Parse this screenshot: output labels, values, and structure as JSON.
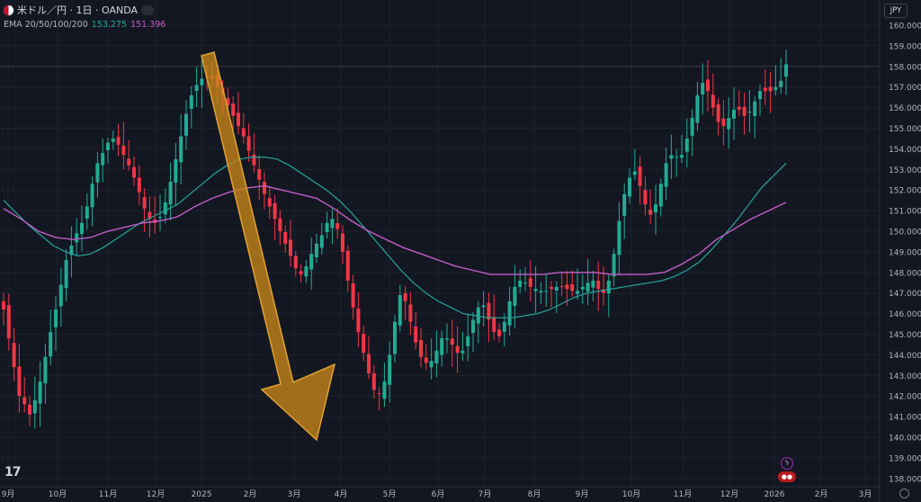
{
  "header": {
    "symbol": "米ドル／円 · 1日 · OANDA"
  },
  "ema": {
    "label": "EMA 20/50/100/200",
    "value1": "153.275",
    "value2": "151.396"
  },
  "currency_button": "JPY",
  "logo": "17",
  "chart_data": {
    "type": "candlestick",
    "price_axis": [
      "160.000",
      "159.000",
      "158.000",
      "157.000",
      "156.000",
      "155.000",
      "154.000",
      "153.000",
      "152.000",
      "151.000",
      "150.000",
      "149.000",
      "148.000",
      "147.000",
      "146.000",
      "145.000",
      "144.000",
      "143.000",
      "142.000",
      "141.000",
      "140.000",
      "139.000",
      "138.000"
    ],
    "ylim": [
      137.6,
      160.6
    ],
    "time_axis": [
      "9月",
      "10月",
      "11月",
      "12月",
      "2025",
      "2月",
      "3月",
      "4月",
      "5月",
      "6月",
      "7月",
      "8月",
      "9月",
      "10月",
      "11月",
      "12月",
      "2026",
      "2月",
      "3月"
    ],
    "price_line": 158.0,
    "colors": {
      "up": "#22ab94",
      "down": "#f23645",
      "ema_short": "#26a69a",
      "ema_long": "#c35dc7",
      "arrow": "#c8871a",
      "background": "#131722"
    },
    "series_close": [
      146.2,
      144.8,
      143.4,
      142.0,
      141.6,
      141.1,
      141.8,
      142.7,
      143.9,
      145.1,
      146.2,
      147.4,
      148.6,
      149.3,
      149.9,
      150.4,
      151.2,
      152.3,
      153.3,
      153.8,
      154.3,
      154.5,
      154.2,
      153.7,
      153.2,
      152.6,
      151.9,
      151.1,
      150.6,
      150.4,
      150.7,
      151.4,
      152.4,
      153.5,
      154.6,
      155.7,
      156.6,
      157.1,
      157.4,
      157.5,
      157.4,
      157.0,
      156.6,
      156.1,
      155.6,
      155.1,
      154.6,
      153.9,
      153.2,
      152.5,
      151.8,
      151.2,
      150.6,
      150.0,
      149.4,
      148.8,
      148.2,
      147.9,
      148.3,
      148.9,
      149.4,
      149.8,
      150.4,
      150.6,
      150.1,
      149.0,
      147.6,
      146.3,
      145.1,
      144.1,
      143.1,
      142.3,
      142.1,
      142.7,
      144.0,
      145.6,
      146.9,
      146.6,
      145.6,
      144.6,
      143.9,
      143.6,
      143.7,
      144.2,
      144.8,
      144.8,
      144.5,
      144.1,
      144.2,
      144.9,
      145.7,
      146.3,
      146.4,
      145.7,
      145.1,
      144.9,
      145.6,
      146.6,
      147.3,
      147.6,
      147.5,
      147.3,
      147.2,
      147.1,
      147.1,
      147.2,
      147.3,
      147.3,
      147.2,
      147.1,
      147.1,
      147.3,
      147.5,
      147.6,
      147.2,
      147.0,
      147.6,
      148.9,
      150.5,
      151.8,
      152.6,
      152.9,
      152.2,
      151.3,
      150.8,
      151.3,
      152.3,
      153.3,
      153.7,
      153.6,
      153.7,
      154.5,
      155.5,
      156.6,
      157.2,
      156.8,
      156.0,
      155.3,
      155.1,
      155.5,
      155.9,
      155.9,
      155.6,
      155.8,
      156.3,
      156.8,
      156.8,
      156.8,
      157.0,
      157.3,
      158.1
    ],
    "ema_short": [
      151.5,
      150.9,
      150.3,
      149.8,
      149.3,
      149.0,
      148.8,
      148.9,
      149.2,
      149.6,
      150.0,
      150.4,
      150.7,
      151.0,
      151.3,
      151.8,
      152.3,
      152.8,
      153.2,
      153.5,
      153.6,
      153.6,
      153.5,
      153.2,
      152.8,
      152.4,
      152.0,
      151.5,
      150.9,
      150.2,
      149.5,
      148.8,
      148.1,
      147.5,
      147.0,
      146.6,
      146.3,
      146.0,
      145.9,
      145.8,
      145.8,
      145.8,
      145.9,
      146.0,
      146.2,
      146.5,
      146.8,
      147.0,
      147.1,
      147.2,
      147.3,
      147.4,
      147.5,
      147.6,
      147.8,
      148.1,
      148.5,
      149.1,
      149.8,
      150.5,
      151.3,
      152.1,
      152.7,
      153.3
    ],
    "ema_long": [
      151.1,
      150.6,
      150.0,
      149.7,
      149.6,
      149.7,
      150.0,
      150.2,
      150.4,
      150.5,
      150.7,
      151.2,
      151.6,
      151.9,
      152.1,
      152.2,
      152.0,
      151.8,
      151.6,
      151.1,
      150.5,
      150.0,
      149.6,
      149.2,
      148.9,
      148.6,
      148.3,
      148.1,
      147.9,
      147.9,
      147.9,
      147.9,
      148.0,
      148.0,
      148.0,
      147.9,
      147.9,
      147.9,
      148.0,
      148.4,
      148.9,
      149.6,
      150.1,
      150.6,
      151.0,
      151.4
    ]
  }
}
